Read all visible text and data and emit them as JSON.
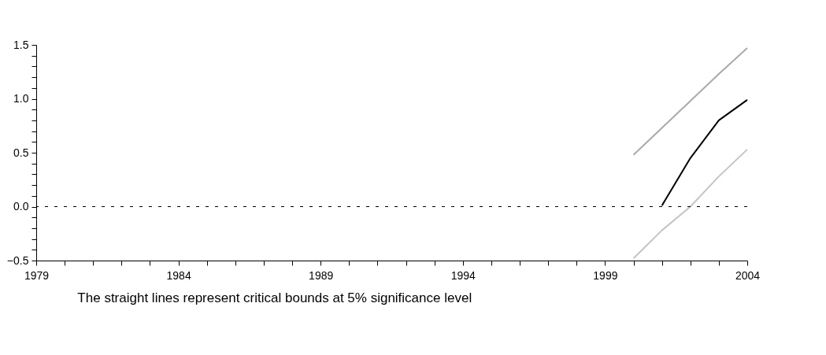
{
  "chart_data": {
    "type": "line",
    "x": [
      2000,
      2001,
      2002,
      2003,
      2004
    ],
    "series": [
      {
        "color": "#aaaaaa",
        "values": [
          0.48,
          0.73,
          0.98,
          1.23,
          1.47
        ]
      },
      {
        "color": "#000000",
        "values": [
          null,
          0.01,
          0.45,
          0.8,
          0.99
        ]
      },
      {
        "color": "#c4c4c4",
        "values": [
          -0.48,
          -0.22,
          0.0,
          0.28,
          0.53
        ]
      }
    ],
    "xlim": [
      1979,
      2004
    ],
    "xticks": [
      1979,
      {
        "value": 1980,
        "label": null
      },
      {
        "value": 1981,
        "label": null
      },
      {
        "value": 1982,
        "label": null
      },
      {
        "value": 1983,
        "label": null
      },
      1984,
      {
        "value": 1985,
        "label": null
      },
      {
        "value": 1986,
        "label": null
      },
      {
        "value": 1987,
        "label": null
      },
      {
        "value": 1988,
        "label": null
      },
      1989,
      {
        "value": 1990,
        "label": null
      },
      {
        "value": 1991,
        "label": null
      },
      {
        "value": 1992,
        "label": null
      },
      {
        "value": 1993,
        "label": null
      },
      1994,
      {
        "value": 1995,
        "label": null
      },
      {
        "value": 1996,
        "label": null
      },
      {
        "value": 1997,
        "label": null
      },
      {
        "value": 1998,
        "label": null
      },
      1999,
      {
        "value": 2000,
        "label": null
      },
      {
        "value": 2001,
        "label": null
      },
      {
        "value": 2002,
        "label": null
      },
      {
        "value": 2003,
        "label": null
      },
      2004
    ],
    "ylim": [
      -0.5,
      1.5
    ],
    "yticks": [
      {
        "value": -0.5,
        "label": "−0.5"
      },
      {
        "value": -0.4,
        "label": null
      },
      {
        "value": -0.3,
        "label": null
      },
      {
        "value": -0.2,
        "label": null
      },
      {
        "value": -0.1,
        "label": null
      },
      {
        "value": 0,
        "label": "0.0"
      },
      {
        "value": 0.1,
        "label": null
      },
      {
        "value": 0.2,
        "label": null
      },
      {
        "value": 0.3,
        "label": null
      },
      {
        "value": 0.4,
        "label": null
      },
      {
        "value": 0.5,
        "label": "0.5"
      },
      {
        "value": 0.6,
        "label": null
      },
      {
        "value": 0.7,
        "label": null
      },
      {
        "value": 0.8,
        "label": null
      },
      {
        "value": 0.9,
        "label": null
      },
      {
        "value": 1.0,
        "label": "1.0"
      },
      {
        "value": 1.1,
        "label": null
      },
      {
        "value": 1.2,
        "label": null
      },
      {
        "value": 1.3,
        "label": null
      },
      {
        "value": 1.4,
        "label": null
      },
      {
        "value": 1.5,
        "label": "1.5"
      }
    ],
    "ref_lines": [
      {
        "axis": "y",
        "value": 0,
        "color": "#000000",
        "line_style": "dashed"
      }
    ],
    "annotations": [
      "The straight lines represent critical bounds at 5% significance level"
    ],
    "legend": false,
    "grid": false,
    "marker": "none",
    "line_style": "solid"
  }
}
